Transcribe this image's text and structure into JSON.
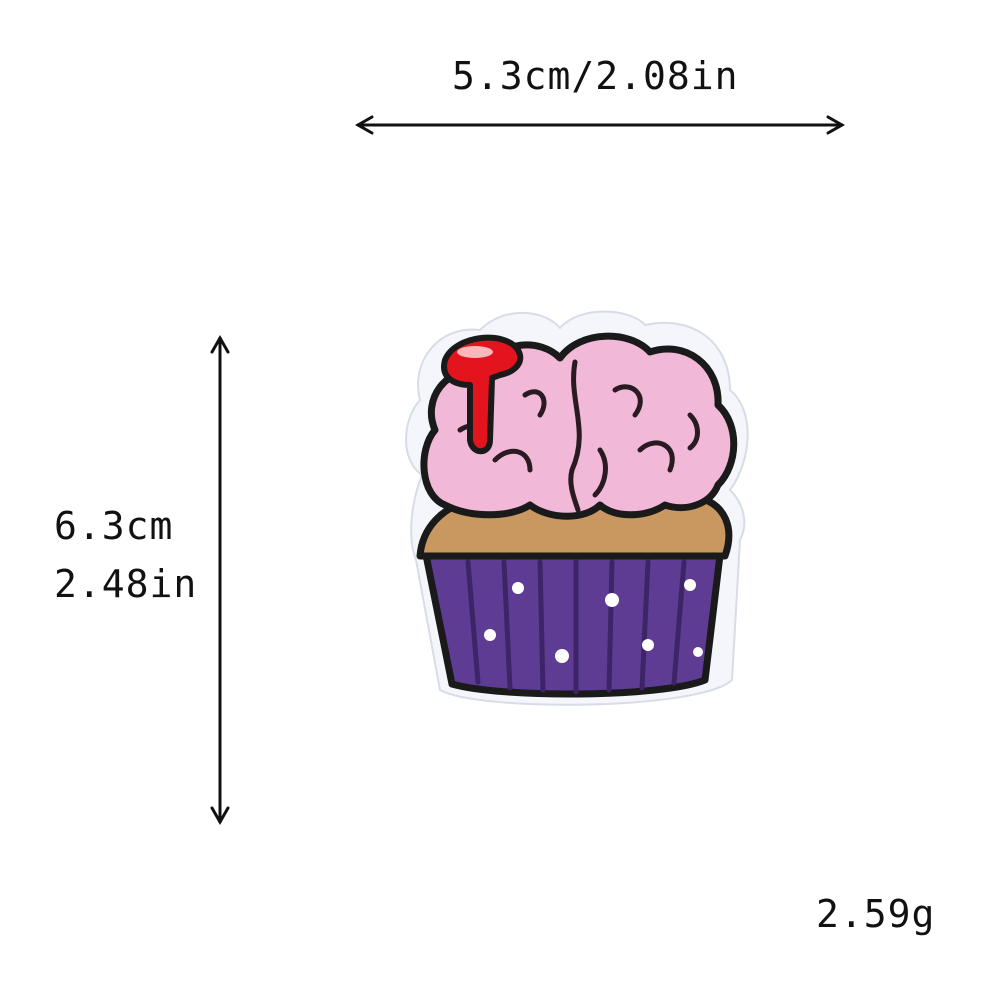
{
  "dimensions": {
    "width_label": "5.3cm/2.08in",
    "height_cm": "6.3cm",
    "height_in": "2.48in",
    "weight": "2.59g"
  },
  "patch": {
    "icon": "brain-cupcake-patch-icon",
    "colors": {
      "outline": "#1a1a1a",
      "backing": "#f4f6fb",
      "brain": "#f2b8d8",
      "brain_lines": "#2a1a22",
      "blood": "#e3141e",
      "cake": "#c99760",
      "wrapper": "#5f3c93",
      "wrapper_dark": "#3d2466",
      "dots": "#ffffff"
    }
  }
}
